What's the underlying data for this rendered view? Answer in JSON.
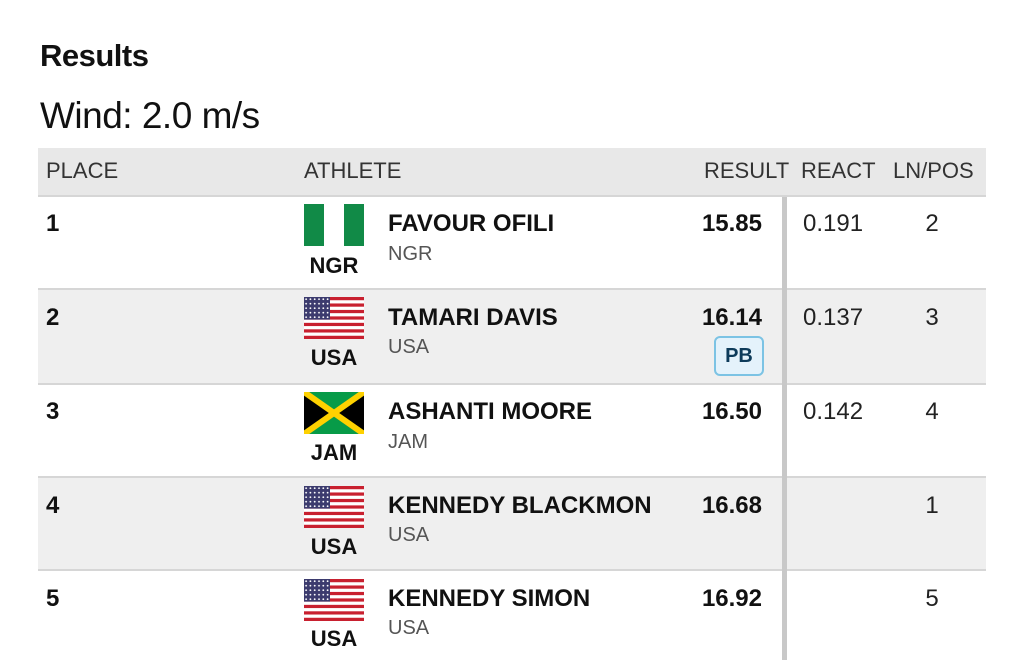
{
  "header": {
    "title": "Results",
    "wind": "Wind: 2.0 m/s"
  },
  "table": {
    "columns": [
      "PLACE",
      "ATHLETE",
      "RESULT",
      "REACT",
      "LN/POS"
    ],
    "rows": [
      {
        "place": "1",
        "flag_code": "NGR",
        "name": "FAVOUR OFILI",
        "country": "NGR",
        "result": "15.85",
        "react": "0.191",
        "lane": "2"
      },
      {
        "place": "2",
        "flag_code": "USA",
        "name": "TAMARI DAVIS",
        "country": "USA",
        "result": "16.14",
        "badge": "PB",
        "react": "0.137",
        "lane": "3"
      },
      {
        "place": "3",
        "flag_code": "JAM",
        "name": "ASHANTI MOORE",
        "country": "JAM",
        "result": "16.50",
        "react": "0.142",
        "lane": "4"
      },
      {
        "place": "4",
        "flag_code": "USA",
        "name": "KENNEDY BLACKMON",
        "country": "USA",
        "result": "16.68",
        "lane": "1"
      },
      {
        "place": "5",
        "flag_code": "USA",
        "name": "KENNEDY SIMON",
        "country": "USA",
        "result": "16.92",
        "lane": "5"
      }
    ]
  }
}
